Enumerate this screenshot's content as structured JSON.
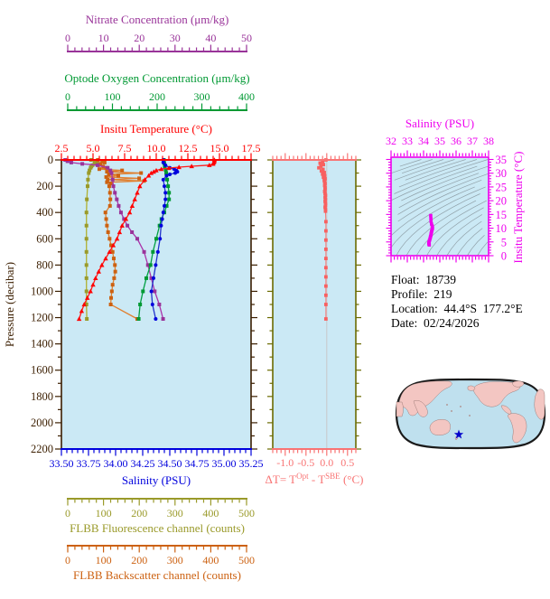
{
  "colors": {
    "page_bg": "#ffffff",
    "panel_bg": "#cbe9f5",
    "frame_brown": "#3b1e00",
    "contour_gray": "#90a0a8"
  },
  "info": {
    "lines": [
      "Float:  18739",
      "Profile:  219",
      "Location:  44.4°S  177.2°E",
      "Date:  02/24/2026"
    ]
  },
  "map": {
    "ocean_color": "#bfe0ee",
    "land_color": "#f3c6c2",
    "outline_color": "#1a1a1a",
    "marker_color": "#0000cc"
  },
  "chart_data": [
    {
      "id": "profile-plot",
      "type": "line",
      "ylabel": "Pressure (decibar)",
      "ylim": [
        0,
        2200
      ],
      "pressure_axis": {
        "title": "Pressure (decibar)",
        "color": "#3b1e00",
        "major_ticks": [
          "0",
          "200",
          "400",
          "600",
          "800",
          "1000",
          "1200",
          "1400",
          "1600",
          "1800",
          "2000",
          "2200"
        ],
        "minor_step": 100
      },
      "series": [
        {
          "id": "fluorescence",
          "name": "FLBB Fluorescence channel (counts)",
          "axis_title": "FLBB Fluorescence channel (counts)",
          "color": "#9a9a2a",
          "line_color": "#b0b030",
          "marker": "square",
          "axis_range": [
            0,
            500
          ],
          "axis_ticks": [
            "0",
            "100",
            "200",
            "300",
            "400",
            "500"
          ],
          "minor_step": 20,
          "pressure": [
            0,
            10,
            20,
            30,
            40,
            50,
            60,
            80,
            100,
            150,
            200,
            300,
            400,
            500,
            600,
            700,
            800,
            900,
            1000,
            1100,
            1210
          ],
          "values": [
            78,
            88,
            94,
            87,
            82,
            79,
            77,
            74,
            72,
            70,
            69,
            67,
            66,
            66,
            66,
            66,
            66,
            66,
            66,
            66,
            67
          ]
        },
        {
          "id": "backscatter",
          "name": "FLBB Backscatter channel (counts)",
          "axis_title": "FLBB Backscatter channel (counts)",
          "color": "#cc6111",
          "line_color": "#e08030",
          "marker": "square",
          "axis_range": [
            0,
            500
          ],
          "axis_ticks": [
            "0",
            "100",
            "200",
            "300",
            "400",
            "500"
          ],
          "minor_step": 20,
          "pressure": [
            0,
            10,
            20,
            30,
            40,
            50,
            60,
            70,
            80,
            90,
            100,
            110,
            120,
            130,
            140,
            150,
            160,
            170,
            180,
            200,
            250,
            300,
            350,
            400,
            450,
            500,
            550,
            600,
            650,
            700,
            750,
            800,
            850,
            900,
            950,
            1000,
            1050,
            1100,
            1210
          ],
          "values": [
            96,
            108,
            114,
            103,
            97,
            110,
            118,
            100,
            160,
            120,
            210,
            125,
            150,
            118,
            205,
            122,
            218,
            120,
            130,
            126,
            128,
            129,
            128,
            116,
            118,
            120,
            123,
            127,
            131,
            135,
            138,
            141,
            142,
            139,
            135,
            133,
            131,
            130,
            200
          ]
        },
        {
          "id": "nitrate",
          "name": "Nitrate Concentration (μm/kg)",
          "axis_title": "Nitrate Concentration (μm/kg)",
          "color": "#993399",
          "line_color": "#aa33aa",
          "marker": "square",
          "axis_range": [
            0,
            50
          ],
          "axis_ticks": [
            "0",
            "10",
            "20",
            "30",
            "40",
            "50"
          ],
          "minor_step": 2,
          "pressure": [
            0,
            10,
            20,
            30,
            40,
            60,
            80,
            100,
            150,
            200,
            250,
            300,
            350,
            400,
            450,
            500,
            550,
            600,
            700,
            800,
            900,
            1000,
            1100,
            1210
          ],
          "values": [
            1.0,
            1.6,
            2.6,
            5.5,
            9.5,
            12.2,
            12.9,
            13.2,
            13.5,
            13.7,
            14.1,
            14.6,
            15.1,
            15.7,
            16.5,
            17.4,
            18.6,
            20.0,
            21.8,
            22.8,
            23.7,
            24.6,
            25.8,
            26.8
          ]
        },
        {
          "id": "oxygen",
          "name": "Optode Oxygen Concentration (μm/kg)",
          "axis_title": "Optode Oxygen Concentration (μm/kg)",
          "color": "#009933",
          "line_color": "#00a043",
          "marker": "square",
          "axis_range": [
            0,
            400
          ],
          "axis_ticks": [
            "0",
            "100",
            "200",
            "300",
            "400"
          ],
          "minor_step": 20,
          "pressure": [
            0,
            25,
            50,
            75,
            100,
            150,
            200,
            250,
            300,
            350,
            400,
            450,
            500,
            600,
            700,
            800,
            900,
            1000,
            1100,
            1210
          ],
          "values": [
            216,
            217,
            218,
            220,
            221,
            223,
            225,
            227,
            227,
            222,
            217,
            211,
            207,
            200,
            193,
            188,
            179,
            172,
            166,
            163
          ]
        },
        {
          "id": "salinity",
          "name": "Salinity (PSU)",
          "axis_title": "Salinity (PSU)",
          "color": "#0000dd",
          "line_color": "#2233cc",
          "marker": "circle",
          "axis_range": [
            33.5,
            35.25
          ],
          "axis_ticks": [
            "33.50",
            "33.75",
            "34.00",
            "34.25",
            "34.50",
            "34.75",
            "35.00",
            "35.25"
          ],
          "minor_step": 0.05,
          "pressure": [
            0,
            20,
            40,
            60,
            70,
            80,
            90,
            100,
            110,
            120,
            150,
            200,
            250,
            300,
            350,
            400,
            450,
            500,
            600,
            700,
            800,
            900,
            1000,
            1100,
            1210
          ],
          "values": [
            34.44,
            34.44,
            34.46,
            34.5,
            34.54,
            34.56,
            34.57,
            34.55,
            34.5,
            34.47,
            34.44,
            34.45,
            34.46,
            34.46,
            34.45,
            34.44,
            34.43,
            34.42,
            34.41,
            34.39,
            34.37,
            34.35,
            34.33,
            34.34,
            34.37
          ]
        },
        {
          "id": "temperature",
          "name": "Insitu Temperature (°C)",
          "axis_title": "Insitu Temperature (°C)",
          "color": "#ff0000",
          "line_color": "#ff1a1a",
          "marker": "triangle",
          "axis_range": [
            2.5,
            17.5
          ],
          "axis_ticks": [
            "2.5",
            "5.0",
            "7.5",
            "10.0",
            "12.5",
            "15.0",
            "17.5"
          ],
          "minor_step": 0.5,
          "pressure": [
            0,
            10,
            20,
            30,
            40,
            48,
            55,
            62,
            70,
            80,
            90,
            100,
            120,
            150,
            200,
            250,
            300,
            350,
            400,
            450,
            500,
            550,
            600,
            650,
            700,
            750,
            800,
            850,
            900,
            950,
            1000,
            1050,
            1100,
            1150,
            1210
          ],
          "values": [
            14.6,
            14.6,
            14.55,
            14.5,
            14.2,
            12.8,
            11.8,
            11.0,
            10.4,
            10.0,
            9.8,
            9.6,
            9.4,
            9.1,
            8.7,
            8.5,
            8.3,
            8.1,
            7.9,
            7.6,
            7.3,
            7.1,
            6.9,
            6.6,
            6.3,
            6.0,
            5.7,
            5.45,
            5.2,
            5.0,
            4.8,
            4.55,
            4.3,
            4.1,
            3.9
          ]
        }
      ]
    },
    {
      "id": "delta-t-plot",
      "type": "line",
      "color": "#f87474",
      "marker_color": "#f86060",
      "side_axis_color": "#6b6b00",
      "zero_line_color": "#c8c8c8",
      "x_axis": {
        "range": [
          -1.3,
          0.7
        ],
        "ticks": [
          "-1.0",
          "-0.5",
          "0.0",
          "0.5"
        ],
        "minor_step": 0.1,
        "color": "#f87474",
        "title_parts": {
          "p1": "ΔT= T",
          "s1": "Opt",
          "p2": " - T",
          "s2": "SBE",
          "p3": " (°C)"
        }
      },
      "pressure": [
        0,
        12,
        24,
        36,
        48,
        60,
        72,
        84,
        96,
        108,
        120,
        132,
        144,
        156,
        168,
        180,
        195,
        210,
        225,
        240,
        255,
        270,
        285,
        300,
        315,
        330,
        345,
        360,
        375,
        390,
        470,
        540,
        610,
        680,
        750,
        820,
        890,
        960,
        1030,
        1100,
        1210
      ],
      "values": [
        -0.02,
        -0.1,
        -0.16,
        -0.08,
        -0.14,
        -0.19,
        -0.09,
        -0.13,
        -0.06,
        -0.1,
        -0.05,
        -0.08,
        -0.04,
        -0.06,
        -0.05,
        -0.04,
        -0.05,
        -0.04,
        -0.04,
        -0.05,
        -0.04,
        -0.03,
        -0.04,
        -0.03,
        -0.04,
        -0.03,
        -0.03,
        -0.04,
        -0.03,
        -0.03,
        -0.02,
        -0.02,
        -0.02,
        -0.02,
        -0.02,
        -0.02,
        -0.02,
        -0.02,
        -0.02,
        -0.02,
        -0.02
      ]
    },
    {
      "id": "ts-plot",
      "type": "line",
      "title": "Salinity (PSU)",
      "frame_color": "#ee00ee",
      "curve_color": "#ee00ee",
      "contour_color": "#90a0a8",
      "x_axis": {
        "range": [
          32,
          38
        ],
        "ticks": [
          "32",
          "33",
          "34",
          "35",
          "36",
          "37",
          "38"
        ],
        "minor_step": 0.2
      },
      "y_axis": {
        "title": "Insitu Temperature (°C)",
        "range": [
          0,
          35
        ],
        "ticks": [
          "0",
          "5",
          "10",
          "15",
          "20",
          "25",
          "30",
          "35"
        ],
        "minor_step": 1
      },
      "salinity": [
        34.44,
        34.45,
        34.46,
        34.49,
        34.53,
        34.55,
        34.54,
        34.52,
        34.5,
        34.49,
        34.47,
        34.46,
        34.45,
        34.43,
        34.41,
        34.39,
        34.36,
        34.34,
        34.32,
        34.33,
        34.35
      ],
      "temperature": [
        14.6,
        13.5,
        12.5,
        11.5,
        10.8,
        10.2,
        9.8,
        9.4,
        9.0,
        8.6,
        8.2,
        7.8,
        7.4,
        7.0,
        6.5,
        6.0,
        5.5,
        5.0,
        4.6,
        4.2,
        3.9
      ]
    }
  ]
}
